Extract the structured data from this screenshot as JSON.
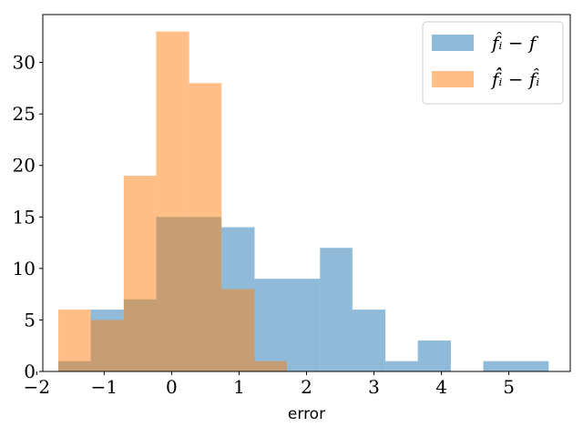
{
  "chart_data": {
    "type": "bar",
    "subtype": "histogram",
    "title": "",
    "xlabel": "error",
    "ylabel": "",
    "xlim": [
      -1.91,
      5.91
    ],
    "ylim": [
      0,
      34.65
    ],
    "xticks": [
      -2,
      -1,
      0,
      1,
      2,
      3,
      4,
      5
    ],
    "xtick_labels": [
      "−2",
      "−1",
      "0",
      "1",
      "2",
      "3",
      "4",
      "5"
    ],
    "yticks": [
      0,
      5,
      10,
      15,
      20,
      25,
      30
    ],
    "ytick_labels": [
      "0",
      "5",
      "10",
      "15",
      "20",
      "25",
      "30"
    ],
    "grid": false,
    "legend_position": "upper-right",
    "series": [
      {
        "name": "f̂ᵢ − f",
        "color": "#1f77b4",
        "opacity": 0.5,
        "bin_edges": [
          -1.68,
          -1.2,
          -0.71,
          -0.23,
          0.26,
          0.74,
          1.23,
          1.71,
          2.2,
          2.68,
          3.17,
          3.65,
          4.14,
          4.62,
          5.11,
          5.59
        ],
        "counts": [
          1,
          6,
          7,
          15,
          15,
          14,
          9,
          9,
          12,
          6,
          1,
          3,
          0,
          1,
          1
        ]
      },
      {
        "name": "f̂̂ᵢ − f̂ᵢ",
        "color": "#ff7f0e",
        "opacity": 0.5,
        "bin_edges": [
          -1.68,
          -1.2,
          -0.71,
          -0.23,
          0.26,
          0.74,
          1.23,
          1.71
        ],
        "counts": [
          6,
          5,
          19,
          33,
          28,
          8,
          1
        ]
      }
    ]
  }
}
